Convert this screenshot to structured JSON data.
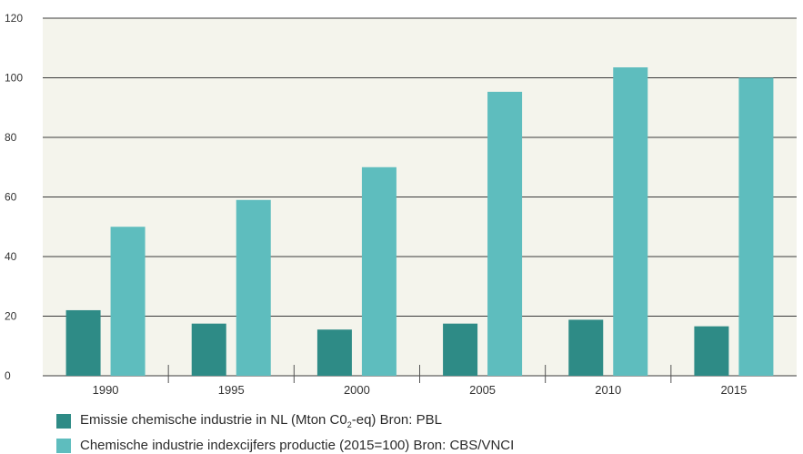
{
  "chart_data": {
    "type": "bar",
    "categories": [
      "1990",
      "1995",
      "2000",
      "2005",
      "2010",
      "2015"
    ],
    "series": [
      {
        "name": "Emissie chemische industrie in NL (Mton C0₂-eq) Bron: PBL",
        "color": "#2e8b86",
        "values": [
          22,
          17.5,
          15.5,
          17.5,
          18.8,
          16.6
        ]
      },
      {
        "name": "Chemische industrie indexcijfers productie (2015=100) Bron: CBS/VNCI",
        "color": "#5ebdbe",
        "values": [
          50,
          59,
          70,
          95.3,
          103.5,
          100
        ]
      }
    ],
    "yticks": [
      "0",
      "20",
      "40",
      "60",
      "80",
      "100",
      "120"
    ],
    "ylim": [
      0,
      120
    ],
    "title": "",
    "xlabel": "",
    "ylabel": "",
    "grid": true,
    "legend_position": "bottom",
    "plot_background": "#f4f4ec"
  },
  "legend": {
    "series1": {
      "prefix": "Emissie chemische industrie in NL (Mton C0",
      "sub": "2",
      "suffix": "-eq) Bron: PBL"
    },
    "series2": {
      "text": "Chemische industrie indexcijfers productie (2015=100) Bron: CBS/VNCI"
    }
  }
}
